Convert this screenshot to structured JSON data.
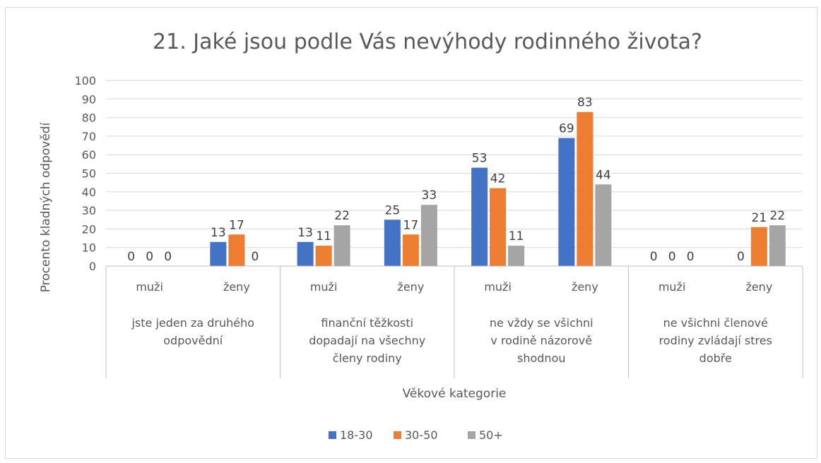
{
  "chart_data": {
    "type": "bar",
    "title": "21. Jaké jsou podle Vás nevýhody rodinného života?",
    "xlabel": "Věkové kategorie",
    "ylabel": "Procento kladných odpovědí",
    "ylim": [
      0,
      100
    ],
    "yticks": [
      0,
      10,
      20,
      30,
      40,
      50,
      60,
      70,
      80,
      90,
      100
    ],
    "grid": true,
    "legend_position": "bottom",
    "groups": [
      {
        "label": [
          "jste jeden za druhého",
          "odpovědní"
        ]
      },
      {
        "label": [
          "finanční těžkosti",
          "dopadají na všechny",
          "členy rodiny"
        ]
      },
      {
        "label": [
          "ne vždy se všichni",
          "v rodině názorově",
          "shodnou"
        ]
      },
      {
        "label": [
          "ne všichni členové",
          "rodiny zvládají stres",
          "dobře"
        ]
      }
    ],
    "categories": [
      "muži",
      "ženy",
      "muži",
      "ženy",
      "muži",
      "ženy",
      "muži",
      "ženy"
    ],
    "series": [
      {
        "name": "18-30",
        "color": "#4472c4",
        "values": [
          0,
          13,
          13,
          25,
          53,
          69,
          0,
          0
        ]
      },
      {
        "name": "30-50",
        "color": "#ed7d31",
        "values": [
          0,
          17,
          11,
          17,
          42,
          83,
          0,
          21
        ]
      },
      {
        "name": "50+",
        "color": "#a5a5a5",
        "values": [
          0,
          0,
          22,
          33,
          11,
          44,
          0,
          22
        ]
      }
    ]
  }
}
